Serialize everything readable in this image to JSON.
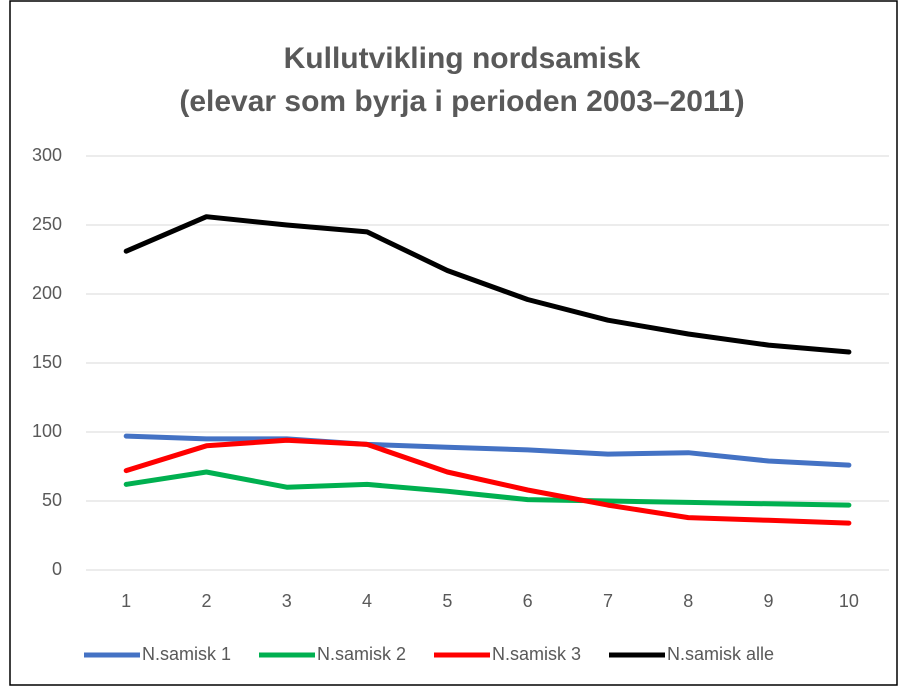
{
  "chart_data": {
    "type": "line",
    "title": [
      "Kullutvikling nordsamisk",
      "(elevar som byrja i perioden 2003–2011)"
    ],
    "categories": [
      1,
      2,
      3,
      4,
      5,
      6,
      7,
      8,
      9,
      10
    ],
    "series": [
      {
        "name": "N.samisk 1",
        "color": "#4472c4",
        "values": [
          97,
          95,
          95,
          91,
          89,
          87,
          84,
          85,
          79,
          76
        ]
      },
      {
        "name": "N.samisk 2",
        "color": "#00b050",
        "values": [
          62,
          71,
          60,
          62,
          57,
          51,
          50,
          49,
          48,
          47
        ]
      },
      {
        "name": "N.samisk 3",
        "color": "#ff0000",
        "values": [
          72,
          90,
          94,
          91,
          71,
          58,
          47,
          38,
          36,
          34
        ]
      },
      {
        "name": "N.samisk alle",
        "color": "#000000",
        "values": [
          231,
          256,
          250,
          245,
          217,
          196,
          181,
          171,
          163,
          158
        ]
      }
    ],
    "ylim": [
      0,
      300
    ],
    "yticks": [
      0,
      50,
      100,
      150,
      200,
      250,
      300
    ],
    "grid": true,
    "legend": "bottom"
  }
}
